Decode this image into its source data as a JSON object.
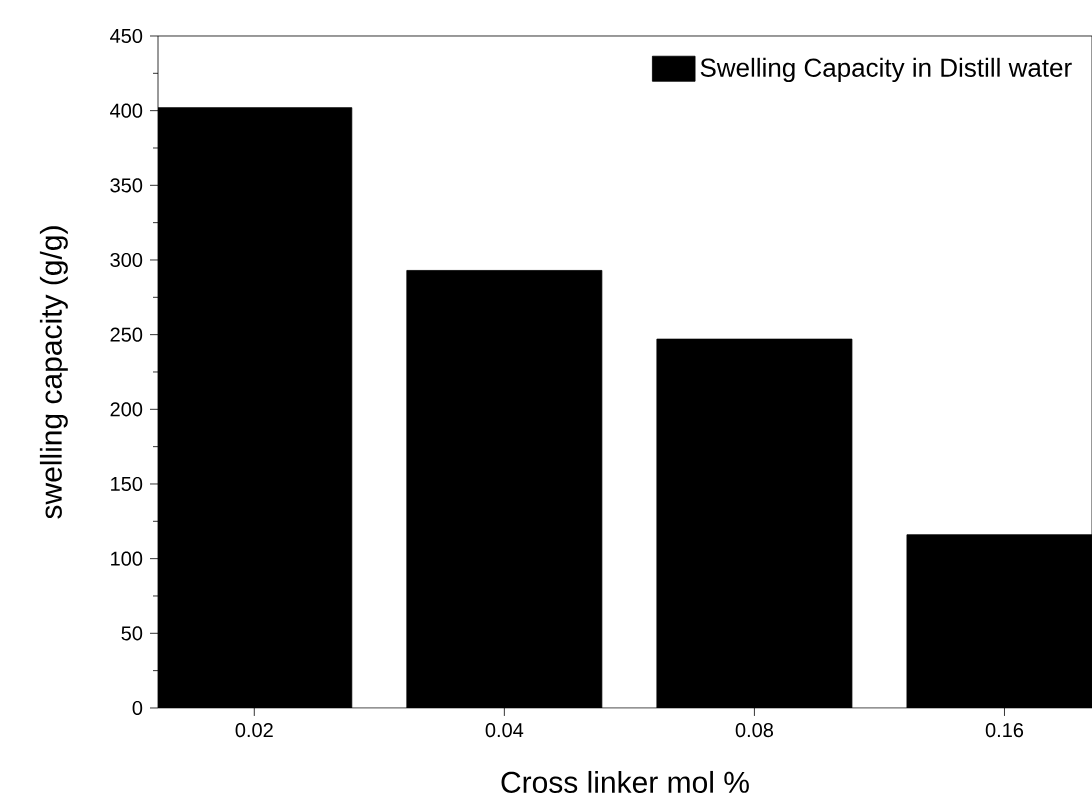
{
  "chart_data": {
    "type": "bar",
    "xlabel": "Cross linker mol %",
    "ylabel": "swelling capacity (g/g)",
    "categories": [
      "0.02",
      "0.04",
      "0.08",
      "0.16"
    ],
    "series": [
      {
        "name": "Swelling Capacity in Distill water",
        "color": "#000000",
        "values": [
          402,
          293,
          247,
          116
        ]
      }
    ],
    "ylim": [
      0,
      450
    ],
    "yticks": [
      0,
      50,
      100,
      150,
      200,
      250,
      300,
      350,
      400,
      450
    ],
    "legend": "top right"
  }
}
